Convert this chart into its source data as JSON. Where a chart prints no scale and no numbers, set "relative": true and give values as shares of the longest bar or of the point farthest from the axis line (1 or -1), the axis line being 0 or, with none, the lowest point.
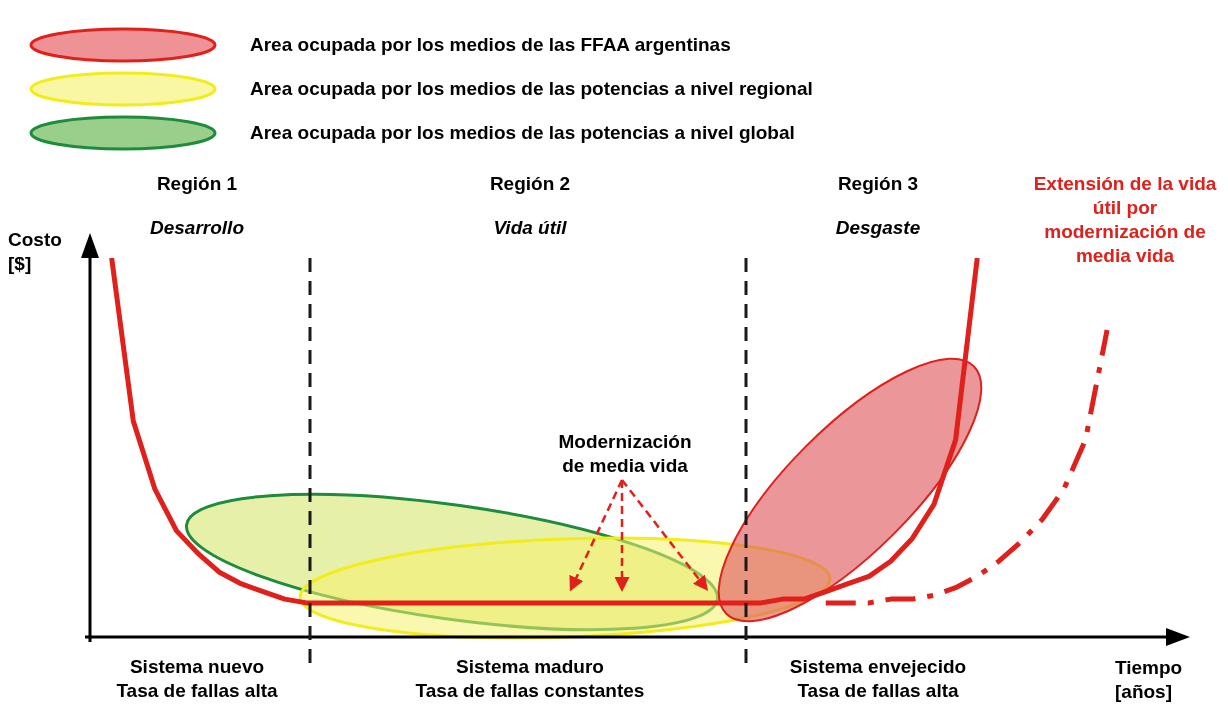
{
  "chart_data": {
    "type": "line",
    "relative": true,
    "legend": false,
    "tick_labels": false,
    "marker": "none",
    "xlabel": "Tiempo\n[años]",
    "ylabel": "Costo\n[$]",
    "categories": [
      null,
      null,
      null,
      null,
      null,
      null,
      null,
      null,
      null,
      null,
      null,
      null,
      null,
      null,
      null,
      null,
      null,
      null,
      null,
      null,
      null,
      null,
      null,
      null,
      null,
      null,
      null,
      null,
      null,
      null,
      null,
      null,
      null,
      null,
      null,
      null,
      null,
      null,
      null,
      null,
      null,
      null,
      null,
      null,
      null,
      null,
      null,
      null,
      null,
      null,
      null
    ],
    "series": [
      {
        "color": "#e0201b",
        "line_style": "solid",
        "values": [
          null,
          1.0,
          0.57,
          0.39,
          0.28,
          0.22,
          0.17,
          0.14,
          0.12,
          0.1,
          0.09,
          0.09,
          0.09,
          0.09,
          0.09,
          0.09,
          0.09,
          0.09,
          0.09,
          0.09,
          0.09,
          0.09,
          0.09,
          0.09,
          0.09,
          0.09,
          0.09,
          0.09,
          0.09,
          0.09,
          0.09,
          0.09,
          0.1,
          0.1,
          0.12,
          0.14,
          0.16,
          0.2,
          0.26,
          0.35,
          0.52,
          1.0,
          null,
          null,
          null,
          null,
          null,
          null,
          null,
          null,
          null
        ]
      },
      {
        "name": "Extensión de la vida útil por modernización de media vida",
        "color": "#e0201b",
        "line_style": "dashed",
        "values": [
          null,
          null,
          null,
          null,
          null,
          null,
          null,
          null,
          null,
          null,
          null,
          null,
          null,
          null,
          null,
          null,
          null,
          null,
          null,
          null,
          null,
          null,
          null,
          null,
          null,
          null,
          null,
          null,
          null,
          null,
          null,
          null,
          null,
          null,
          0.09,
          0.09,
          0.09,
          0.1,
          0.1,
          0.11,
          0.13,
          0.16,
          0.2,
          0.25,
          0.31,
          0.39,
          0.52,
          0.81,
          null,
          null,
          null
        ]
      }
    ],
    "annotations": [
      "Area ocupada por los medios de las FFAA argentinas",
      "Area ocupada por los medios de las potencias a nivel regional",
      "Area ocupada por los medios de las potencias a nivel global",
      "Región 1",
      "Desarrollo",
      "Región 2",
      "Vida útil",
      "Región 3",
      "Desgaste",
      "Sistema nuevo\nTasa de fallas alta",
      "Sistema maduro\nTasa de fallas constantes",
      "Sistema envejecido\nTasa de fallas alta",
      "Modernización\nde media vida"
    ]
  }
}
